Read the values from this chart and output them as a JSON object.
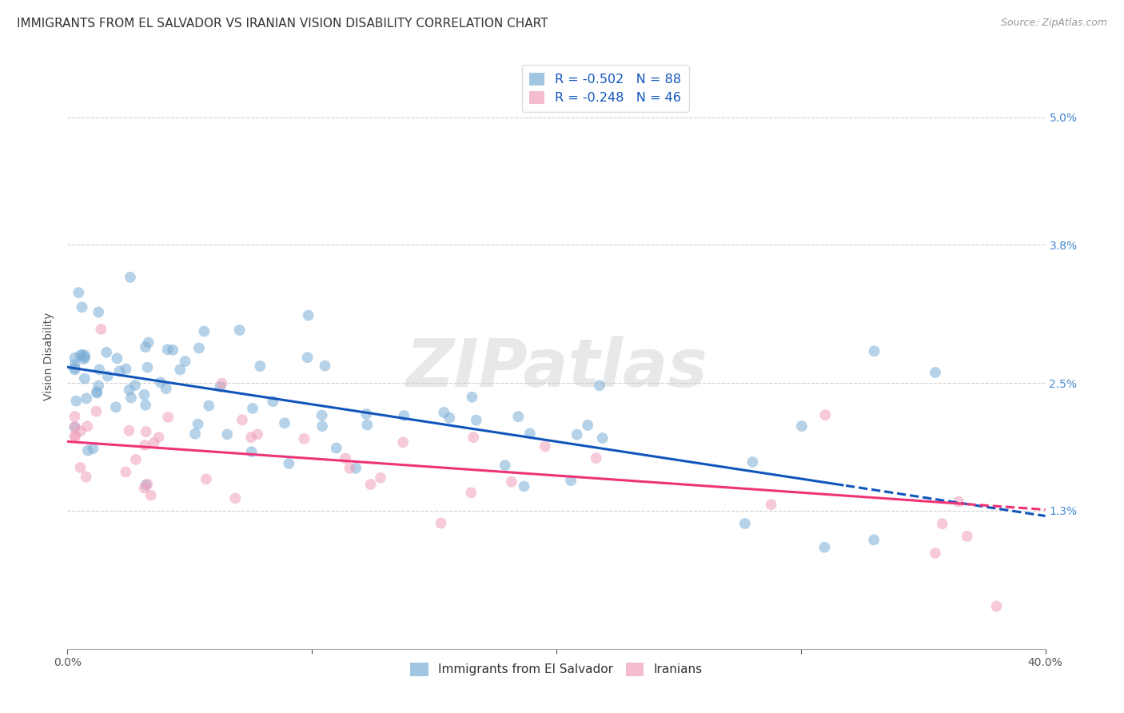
{
  "title": "IMMIGRANTS FROM EL SALVADOR VS IRANIAN VISION DISABILITY CORRELATION CHART",
  "source": "Source: ZipAtlas.com",
  "ylabel": "Vision Disability",
  "xlabel": "",
  "xlim": [
    0.0,
    0.4
  ],
  "ylim": [
    0.0,
    0.055
  ],
  "yticks": [
    0.013,
    0.025,
    0.038,
    0.05
  ],
  "ytick_labels": [
    "1.3%",
    "2.5%",
    "3.8%",
    "5.0%"
  ],
  "xticks": [
    0.0,
    0.1,
    0.2,
    0.3,
    0.4
  ],
  "xtick_labels": [
    "0.0%",
    "",
    "",
    "",
    "40.0%"
  ],
  "background_color": "#ffffff",
  "grid_color": "#d0d0d0",
  "blue_color": "#7aaed6",
  "pink_color": "#f0a0bb",
  "blue_line_color": "#1155bb",
  "pink_line_color": "#ee3377",
  "R_blue": -0.502,
  "N_blue": 88,
  "R_pink": -0.248,
  "N_pink": 46,
  "blue_intercept": 0.0265,
  "blue_slope": -0.035,
  "pink_intercept": 0.0195,
  "pink_slope": -0.016,
  "watermark": "ZIPatlas",
  "title_fontsize": 11,
  "label_fontsize": 10,
  "tick_fontsize": 10,
  "tick_color": "#4488cc"
}
